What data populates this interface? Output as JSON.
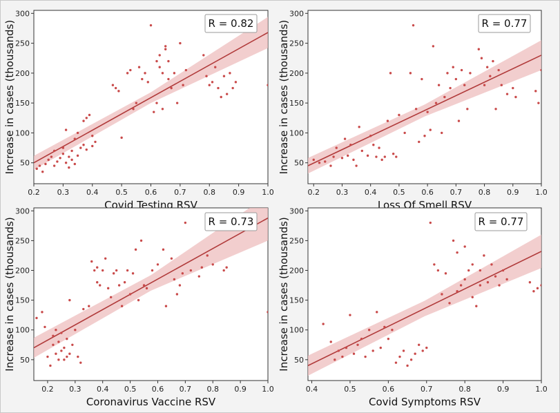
{
  "colors": {
    "line": "#b03a3a",
    "band": "#eebebe",
    "point": "#c94a4a"
  },
  "chart_data": [
    {
      "type": "scatter",
      "xlabel": "Covid Testing RSV",
      "ylabel": "Increase in cases (thousands)",
      "annotation": "R = 0.82",
      "xlim": [
        0.2,
        1.0
      ],
      "ylim": [
        15,
        305
      ],
      "xticks": [
        "0.2",
        "0.3",
        "0.4",
        "0.5",
        "0.6",
        "0.7",
        "0.8",
        "0.9",
        "1.0"
      ],
      "yticks": [
        "50",
        "100",
        "150",
        "200",
        "250",
        "300"
      ],
      "fit": {
        "x": [
          0.2,
          1.0
        ],
        "y": [
          50,
          268
        ],
        "band_halfwidth": [
          9,
          26
        ]
      },
      "x": [
        0.21,
        0.22,
        0.23,
        0.24,
        0.25,
        0.26,
        0.27,
        0.27,
        0.28,
        0.29,
        0.3,
        0.3,
        0.31,
        0.31,
        0.32,
        0.32,
        0.33,
        0.33,
        0.34,
        0.34,
        0.35,
        0.35,
        0.36,
        0.37,
        0.37,
        0.38,
        0.38,
        0.39,
        0.4,
        0.4,
        0.41,
        0.47,
        0.48,
        0.49,
        0.5,
        0.52,
        0.53,
        0.54,
        0.55,
        0.56,
        0.57,
        0.58,
        0.59,
        0.6,
        0.61,
        0.62,
        0.62,
        0.63,
        0.63,
        0.64,
        0.64,
        0.65,
        0.65,
        0.66,
        0.66,
        0.67,
        0.68,
        0.69,
        0.7,
        0.71,
        0.72,
        0.78,
        0.79,
        0.8,
        0.81,
        0.82,
        0.83,
        0.84,
        0.85,
        0.86,
        0.87,
        0.88,
        0.89,
        1.0
      ],
      "y": [
        40,
        45,
        35,
        48,
        55,
        60,
        45,
        70,
        52,
        58,
        65,
        75,
        50,
        105,
        60,
        42,
        55,
        70,
        90,
        48,
        62,
        100,
        75,
        80,
        120,
        125,
        72,
        130,
        95,
        78,
        85,
        180,
        175,
        170,
        92,
        200,
        205,
        140,
        150,
        210,
        190,
        200,
        185,
        280,
        135,
        220,
        150,
        210,
        230,
        140,
        200,
        240,
        245,
        190,
        220,
        175,
        200,
        150,
        250,
        180,
        205,
        230,
        195,
        180,
        185,
        210,
        175,
        160,
        195,
        165,
        200,
        175,
        185,
        180
      ]
    },
    {
      "type": "scatter",
      "xlabel": "Loss Of Smell RSV",
      "ylabel": "Increase in cases (thousands)",
      "annotation": "R = 0.77",
      "xlim": [
        0.18,
        1.0
      ],
      "ylim": [
        15,
        305
      ],
      "xticks": [
        "0.2",
        "0.3",
        "0.4",
        "0.5",
        "0.6",
        "0.7",
        "0.8",
        "0.9",
        "1.0"
      ],
      "yticks": [
        "50",
        "100",
        "150",
        "200",
        "250",
        "300"
      ],
      "fit": {
        "x": [
          0.18,
          1.0
        ],
        "y": [
          45,
          230
        ],
        "band_halfwidth": [
          10,
          25
        ]
      },
      "x": [
        0.2,
        0.22,
        0.24,
        0.26,
        0.27,
        0.28,
        0.3,
        0.31,
        0.32,
        0.33,
        0.34,
        0.35,
        0.36,
        0.37,
        0.39,
        0.4,
        0.41,
        0.42,
        0.43,
        0.44,
        0.45,
        0.46,
        0.47,
        0.48,
        0.49,
        0.5,
        0.52,
        0.54,
        0.55,
        0.56,
        0.57,
        0.58,
        0.59,
        0.6,
        0.61,
        0.62,
        0.63,
        0.64,
        0.65,
        0.66,
        0.67,
        0.68,
        0.69,
        0.7,
        0.71,
        0.72,
        0.73,
        0.74,
        0.75,
        0.78,
        0.79,
        0.8,
        0.81,
        0.82,
        0.83,
        0.84,
        0.85,
        0.86,
        0.88,
        0.9,
        0.91,
        0.98,
        0.99,
        1.0
      ],
      "y": [
        55,
        50,
        52,
        45,
        60,
        75,
        58,
        90,
        62,
        80,
        55,
        45,
        110,
        70,
        62,
        95,
        80,
        60,
        75,
        55,
        60,
        120,
        200,
        65,
        60,
        130,
        100,
        200,
        280,
        140,
        85,
        190,
        95,
        135,
        105,
        245,
        150,
        180,
        100,
        160,
        200,
        175,
        210,
        190,
        120,
        205,
        180,
        140,
        200,
        240,
        225,
        180,
        210,
        195,
        220,
        140,
        205,
        180,
        165,
        175,
        160,
        170,
        150,
        205
      ]
    },
    {
      "type": "scatter",
      "xlabel": "Coronavirus Vaccine RSV",
      "ylabel": "Increase in cases (thousands)",
      "annotation": "R = 0.73",
      "xlim": [
        0.15,
        1.0
      ],
      "ylim": [
        15,
        305
      ],
      "xticks": [
        "0.2",
        "0.3",
        "0.4",
        "0.5",
        "0.6",
        "0.7",
        "0.8",
        "0.9",
        "1.0"
      ],
      "yticks": [
        "50",
        "100",
        "150",
        "200",
        "250",
        "300"
      ],
      "fit": {
        "x": [
          0.15,
          1.0
        ],
        "y": [
          70,
          288
        ],
        "band_halfwidth": [
          13,
          38
        ]
      },
      "x": [
        0.16,
        0.18,
        0.19,
        0.2,
        0.21,
        0.22,
        0.22,
        0.23,
        0.23,
        0.24,
        0.24,
        0.25,
        0.25,
        0.26,
        0.26,
        0.27,
        0.27,
        0.28,
        0.28,
        0.29,
        0.3,
        0.31,
        0.32,
        0.33,
        0.35,
        0.36,
        0.37,
        0.38,
        0.38,
        0.39,
        0.4,
        0.41,
        0.42,
        0.43,
        0.44,
        0.45,
        0.46,
        0.47,
        0.48,
        0.49,
        0.5,
        0.51,
        0.52,
        0.53,
        0.54,
        0.55,
        0.56,
        0.58,
        0.6,
        0.62,
        0.63,
        0.65,
        0.66,
        0.67,
        0.68,
        0.69,
        0.7,
        0.72,
        0.75,
        0.76,
        0.78,
        0.8,
        0.84,
        0.85,
        1.0
      ],
      "y": [
        120,
        130,
        105,
        55,
        40,
        75,
        90,
        60,
        100,
        50,
        80,
        65,
        95,
        50,
        70,
        55,
        85,
        60,
        150,
        75,
        100,
        55,
        45,
        135,
        140,
        215,
        200,
        205,
        180,
        175,
        200,
        220,
        170,
        155,
        195,
        200,
        175,
        140,
        180,
        200,
        160,
        195,
        235,
        150,
        250,
        175,
        170,
        200,
        210,
        235,
        140,
        220,
        185,
        160,
        175,
        195,
        280,
        200,
        190,
        205,
        225,
        210,
        200,
        205,
        130
      ]
    },
    {
      "type": "scatter",
      "xlabel": "Covid Symptoms RSV",
      "ylabel": "Increase in cases (thousands)",
      "annotation": "R = 0.77",
      "xlim": [
        0.39,
        1.0
      ],
      "ylim": [
        15,
        305
      ],
      "xticks": [
        "0.4",
        "0.5",
        "0.6",
        "0.7",
        "0.8",
        "0.9",
        "1.0"
      ],
      "yticks": [
        "50",
        "100",
        "150",
        "200",
        "250",
        "300"
      ],
      "fit": {
        "x": [
          0.39,
          1.0
        ],
        "y": [
          40,
          232
        ],
        "band_halfwidth": [
          13,
          28
        ]
      },
      "x": [
        0.43,
        0.45,
        0.46,
        0.47,
        0.48,
        0.49,
        0.5,
        0.51,
        0.52,
        0.53,
        0.54,
        0.55,
        0.56,
        0.57,
        0.58,
        0.59,
        0.6,
        0.61,
        0.62,
        0.63,
        0.64,
        0.65,
        0.66,
        0.67,
        0.68,
        0.69,
        0.7,
        0.71,
        0.72,
        0.73,
        0.74,
        0.75,
        0.76,
        0.77,
        0.78,
        0.78,
        0.79,
        0.8,
        0.8,
        0.81,
        0.82,
        0.82,
        0.83,
        0.84,
        0.84,
        0.85,
        0.86,
        0.87,
        0.88,
        0.89,
        0.9,
        0.91,
        0.97,
        0.98,
        0.99,
        1.0
      ],
      "y": [
        110,
        80,
        50,
        65,
        55,
        70,
        125,
        60,
        75,
        85,
        55,
        100,
        65,
        130,
        70,
        105,
        85,
        100,
        45,
        55,
        65,
        40,
        50,
        60,
        75,
        65,
        70,
        280,
        210,
        200,
        160,
        195,
        145,
        250,
        230,
        165,
        175,
        240,
        185,
        200,
        155,
        210,
        140,
        175,
        200,
        225,
        180,
        210,
        190,
        175,
        200,
        185,
        180,
        165,
        170,
        175
      ]
    }
  ]
}
